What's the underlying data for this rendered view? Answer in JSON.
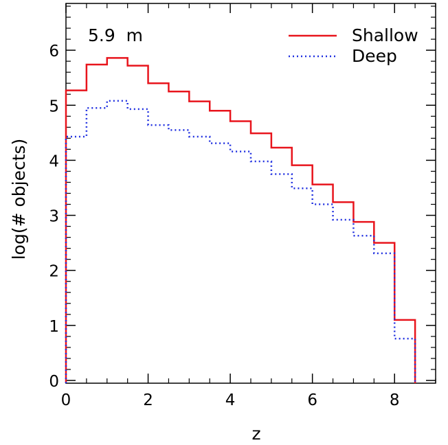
{
  "chart_data": {
    "type": "line",
    "step": true,
    "annotation": "5.9  m",
    "xlabel": "z",
    "ylabel": "log(# objects)",
    "xlim": [
      0,
      9
    ],
    "ylim": [
      -0.05,
      6.85
    ],
    "x_ticks": [
      0,
      2,
      4,
      6,
      8
    ],
    "y_ticks": [
      0,
      1,
      2,
      3,
      4,
      5,
      6
    ],
    "bin_edges": [
      0,
      0.5,
      1,
      1.5,
      2,
      2.5,
      3,
      3.5,
      4,
      4.5,
      5,
      5.5,
      6,
      6.5,
      7,
      7.5,
      8,
      8.5
    ],
    "legend_position": "top-right",
    "series": [
      {
        "name": "Shallow",
        "color": "#e8141c",
        "style": "solid",
        "values": [
          5.27,
          5.74,
          5.86,
          5.72,
          5.4,
          5.25,
          5.07,
          4.9,
          4.71,
          4.49,
          4.23,
          3.91,
          3.56,
          3.24,
          2.88,
          2.5,
          1.1
        ]
      },
      {
        "name": "Deep",
        "color": "#2030e0",
        "style": "dotted",
        "values": [
          4.43,
          4.95,
          5.08,
          4.93,
          4.64,
          4.55,
          4.43,
          4.31,
          4.16,
          3.98,
          3.75,
          3.49,
          3.2,
          2.92,
          2.63,
          2.31,
          0.76
        ]
      }
    ]
  }
}
